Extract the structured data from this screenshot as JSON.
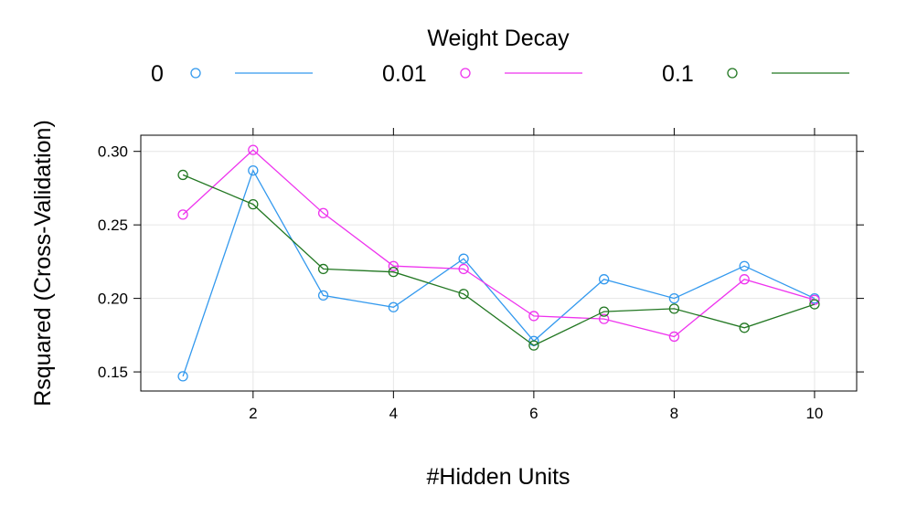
{
  "chart_data": {
    "type": "line",
    "title": "",
    "xlabel": "#Hidden Units",
    "ylabel": "Rsquared (Cross-Validation)",
    "legend": {
      "title": "Weight Decay",
      "placement": "top",
      "entries": [
        "0",
        "0.01",
        "0.1"
      ]
    },
    "x": [
      1,
      2,
      3,
      4,
      5,
      6,
      7,
      8,
      9,
      10
    ],
    "xlim": [
      0.4,
      10.6
    ],
    "ylim": [
      0.137,
      0.311
    ],
    "xticks": [
      2,
      4,
      6,
      8,
      10
    ],
    "yticks": [
      0.15,
      0.2,
      0.25,
      0.3
    ],
    "ytick_labels": [
      "0.15",
      "0.20",
      "0.25",
      "0.30"
    ],
    "grid": true,
    "series": [
      {
        "name": "0",
        "color": "#3399ee",
        "values": [
          0.147,
          0.287,
          0.202,
          0.194,
          0.227,
          0.171,
          0.213,
          0.2,
          0.222,
          0.2
        ]
      },
      {
        "name": "0.01",
        "color": "#ee33ee",
        "values": [
          0.257,
          0.301,
          0.258,
          0.222,
          0.22,
          0.188,
          0.186,
          0.174,
          0.213,
          0.199
        ]
      },
      {
        "name": "0.1",
        "color": "#227722",
        "values": [
          0.284,
          0.264,
          0.22,
          0.218,
          0.203,
          0.168,
          0.191,
          0.193,
          0.18,
          0.196
        ]
      }
    ]
  }
}
